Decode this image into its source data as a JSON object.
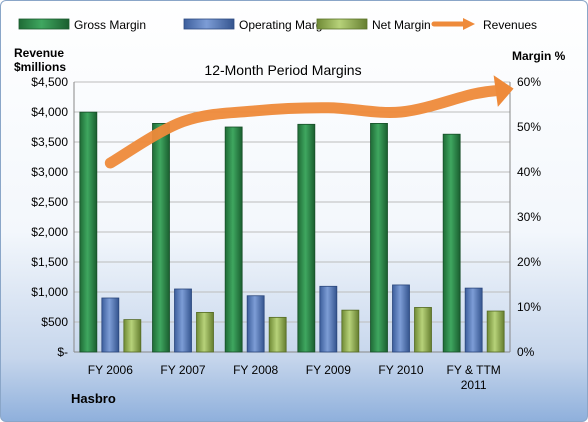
{
  "chart_data": {
    "type": "bar",
    "title": "12-Month Period Margins",
    "company": "Hasbro",
    "left_axis_label": [
      "Revenue",
      "$millions"
    ],
    "right_axis_label": "Margin %",
    "categories": [
      "FY 2006",
      "FY 2007",
      "FY 2008",
      "FY 2009",
      "FY 2010",
      "FY & TTM 2011"
    ],
    "left_ticks": [
      "$-",
      "$500",
      "$1,000",
      "$1,500",
      "$2,000",
      "$2,500",
      "$3,000",
      "$3,500",
      "$4,000",
      "$4,500"
    ],
    "right_ticks": [
      "0%",
      "10%",
      "20%",
      "30%",
      "40%",
      "50%",
      "60%"
    ],
    "ylim_right": [
      0,
      60
    ],
    "ylim_left": [
      0,
      4500
    ],
    "grid": true,
    "legend_position": "top",
    "series": [
      {
        "name": "Gross Margin",
        "axis": "right",
        "color": "#2e8b4a",
        "values": [
          53.3,
          50.8,
          50.0,
          50.6,
          50.8,
          48.4
        ]
      },
      {
        "name": "Operating Margin",
        "axis": "right",
        "color": "#5b7fc0",
        "values": [
          12.0,
          14.0,
          12.5,
          14.6,
          14.9,
          14.2
        ]
      },
      {
        "name": "Net Margin",
        "axis": "right",
        "color": "#9bbb59",
        "values": [
          7.2,
          8.8,
          7.7,
          9.3,
          9.9,
          9.1
        ]
      },
      {
        "name": "Revenues",
        "axis": "left",
        "type": "line",
        "color": "#ee8a3a",
        "values": [
          3150,
          3840,
          4020,
          4070,
          4000,
          4300
        ]
      }
    ]
  }
}
